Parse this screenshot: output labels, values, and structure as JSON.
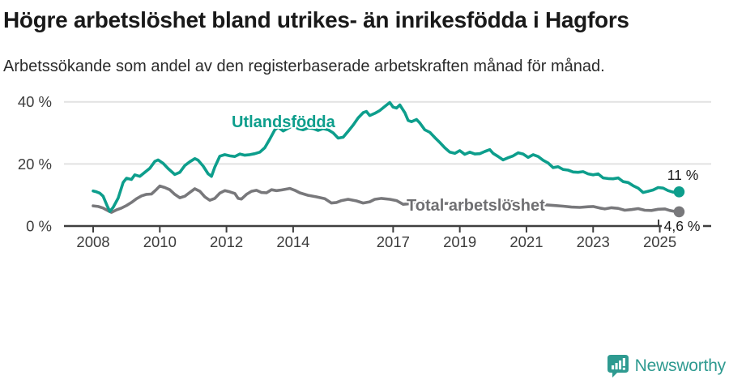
{
  "chart_data": {
    "type": "line",
    "title": "Högre arbetslöshet bland utrikes- än inrikesfödda i Hagfors",
    "subtitle": "Arbetssökande som andel av den registerbaserade arbetskraften månad för månad.",
    "xlabel": "",
    "ylabel": "",
    "y_unit": "%",
    "x_unit": "year",
    "ylim": [
      0,
      44
    ],
    "xlim": [
      2008,
      2026.5
    ],
    "grid": "horizontal",
    "legend": "inline-labels",
    "yticks": [
      {
        "value": 0,
        "label": "0 %"
      },
      {
        "value": 20,
        "label": "20 %"
      },
      {
        "value": 40,
        "label": "40 %"
      }
    ],
    "xticks": [
      {
        "value": 2008,
        "label": "2008"
      },
      {
        "value": 2010,
        "label": "2010"
      },
      {
        "value": 2012,
        "label": "2012"
      },
      {
        "value": 2014,
        "label": "2014"
      },
      {
        "value": 2017,
        "label": "2017"
      },
      {
        "value": 2019,
        "label": "2019"
      },
      {
        "value": 2021,
        "label": "2021"
      },
      {
        "value": 2023,
        "label": "2023"
      },
      {
        "value": 2025,
        "label": "2025"
      }
    ],
    "series": [
      {
        "name": "Utlandsfödda",
        "color": "#0d9e8c",
        "end_label": "11 %",
        "end_value": 11.0,
        "points": [
          [
            2008.0,
            11.3
          ],
          [
            2008.1,
            11.0
          ],
          [
            2008.2,
            10.6
          ],
          [
            2008.3,
            9.6
          ],
          [
            2008.42,
            6.5
          ],
          [
            2008.5,
            4.7
          ],
          [
            2008.6,
            6.0
          ],
          [
            2008.75,
            9.0
          ],
          [
            2008.9,
            14.0
          ],
          [
            2009.0,
            15.4
          ],
          [
            2009.15,
            15.0
          ],
          [
            2009.25,
            16.5
          ],
          [
            2009.4,
            16.0
          ],
          [
            2009.55,
            17.3
          ],
          [
            2009.7,
            18.6
          ],
          [
            2009.85,
            20.8
          ],
          [
            2009.95,
            21.3
          ],
          [
            2010.1,
            20.2
          ],
          [
            2010.25,
            18.5
          ],
          [
            2010.45,
            16.6
          ],
          [
            2010.6,
            17.3
          ],
          [
            2010.75,
            19.5
          ],
          [
            2010.9,
            20.7
          ],
          [
            2011.05,
            21.7
          ],
          [
            2011.15,
            21.2
          ],
          [
            2011.3,
            19.3
          ],
          [
            2011.45,
            16.8
          ],
          [
            2011.55,
            16.0
          ],
          [
            2011.65,
            19.0
          ],
          [
            2011.8,
            22.5
          ],
          [
            2011.95,
            23.0
          ],
          [
            2012.1,
            22.6
          ],
          [
            2012.25,
            22.4
          ],
          [
            2012.4,
            23.2
          ],
          [
            2012.55,
            22.8
          ],
          [
            2012.7,
            23.0
          ],
          [
            2012.85,
            23.3
          ],
          [
            2013.0,
            23.8
          ],
          [
            2013.15,
            25.2
          ],
          [
            2013.3,
            28.0
          ],
          [
            2013.45,
            31.0
          ],
          [
            2013.55,
            31.8
          ],
          [
            2013.7,
            30.6
          ],
          [
            2013.85,
            31.5
          ],
          [
            2014.0,
            32.3
          ],
          [
            2014.15,
            31.4
          ],
          [
            2014.3,
            31.0
          ],
          [
            2014.45,
            31.6
          ],
          [
            2014.6,
            31.4
          ],
          [
            2014.75,
            30.8
          ],
          [
            2014.9,
            31.4
          ],
          [
            2015.05,
            31.0
          ],
          [
            2015.2,
            30.0
          ],
          [
            2015.35,
            28.3
          ],
          [
            2015.5,
            28.6
          ],
          [
            2015.65,
            30.5
          ],
          [
            2015.8,
            32.5
          ],
          [
            2015.95,
            34.8
          ],
          [
            2016.1,
            36.5
          ],
          [
            2016.2,
            36.9
          ],
          [
            2016.3,
            35.6
          ],
          [
            2016.45,
            36.3
          ],
          [
            2016.6,
            37.2
          ],
          [
            2016.75,
            38.5
          ],
          [
            2016.9,
            39.8
          ],
          [
            2017.0,
            38.3
          ],
          [
            2017.1,
            38.0
          ],
          [
            2017.2,
            39.0
          ],
          [
            2017.35,
            36.5
          ],
          [
            2017.45,
            34.0
          ],
          [
            2017.55,
            33.6
          ],
          [
            2017.7,
            34.3
          ],
          [
            2017.8,
            33.2
          ],
          [
            2017.95,
            31.0
          ],
          [
            2018.1,
            30.2
          ],
          [
            2018.25,
            28.5
          ],
          [
            2018.4,
            26.9
          ],
          [
            2018.55,
            25.2
          ],
          [
            2018.7,
            23.8
          ],
          [
            2018.85,
            23.4
          ],
          [
            2019.0,
            24.3
          ],
          [
            2019.15,
            23.1
          ],
          [
            2019.3,
            23.8
          ],
          [
            2019.45,
            23.2
          ],
          [
            2019.6,
            23.3
          ],
          [
            2019.75,
            24.0
          ],
          [
            2019.9,
            24.6
          ],
          [
            2020.0,
            23.4
          ],
          [
            2020.15,
            22.4
          ],
          [
            2020.3,
            21.3
          ],
          [
            2020.45,
            22.0
          ],
          [
            2020.6,
            22.6
          ],
          [
            2020.75,
            23.6
          ],
          [
            2020.9,
            23.2
          ],
          [
            2021.05,
            22.1
          ],
          [
            2021.2,
            23.0
          ],
          [
            2021.35,
            22.4
          ],
          [
            2021.5,
            21.2
          ],
          [
            2021.65,
            20.3
          ],
          [
            2021.8,
            18.8
          ],
          [
            2021.95,
            19.1
          ],
          [
            2022.1,
            18.2
          ],
          [
            2022.25,
            18.0
          ],
          [
            2022.4,
            17.4
          ],
          [
            2022.55,
            17.3
          ],
          [
            2022.7,
            17.5
          ],
          [
            2022.85,
            16.8
          ],
          [
            2023.0,
            16.5
          ],
          [
            2023.15,
            16.8
          ],
          [
            2023.3,
            15.5
          ],
          [
            2023.45,
            15.3
          ],
          [
            2023.6,
            15.2
          ],
          [
            2023.75,
            15.5
          ],
          [
            2023.9,
            14.3
          ],
          [
            2024.05,
            14.0
          ],
          [
            2024.2,
            13.0
          ],
          [
            2024.35,
            12.2
          ],
          [
            2024.5,
            10.8
          ],
          [
            2024.65,
            11.2
          ],
          [
            2024.8,
            11.6
          ],
          [
            2024.95,
            12.4
          ],
          [
            2025.1,
            12.2
          ],
          [
            2025.25,
            11.4
          ],
          [
            2025.4,
            10.9
          ],
          [
            2025.58,
            11.0
          ]
        ]
      },
      {
        "name": "Total arbetslöshet",
        "color": "#78787b",
        "end_label": "4,6 %",
        "end_value": 4.6,
        "points": [
          [
            2008.0,
            6.5
          ],
          [
            2008.15,
            6.3
          ],
          [
            2008.3,
            5.8
          ],
          [
            2008.45,
            4.9
          ],
          [
            2008.55,
            4.4
          ],
          [
            2008.7,
            5.2
          ],
          [
            2008.85,
            5.8
          ],
          [
            2009.0,
            6.6
          ],
          [
            2009.15,
            7.6
          ],
          [
            2009.3,
            8.8
          ],
          [
            2009.45,
            9.7
          ],
          [
            2009.6,
            10.2
          ],
          [
            2009.75,
            10.3
          ],
          [
            2009.9,
            11.8
          ],
          [
            2010.0,
            12.9
          ],
          [
            2010.15,
            12.4
          ],
          [
            2010.3,
            11.7
          ],
          [
            2010.45,
            10.2
          ],
          [
            2010.6,
            9.1
          ],
          [
            2010.75,
            9.6
          ],
          [
            2010.9,
            10.8
          ],
          [
            2011.05,
            12.0
          ],
          [
            2011.2,
            11.2
          ],
          [
            2011.35,
            9.4
          ],
          [
            2011.5,
            8.3
          ],
          [
            2011.65,
            8.9
          ],
          [
            2011.8,
            10.6
          ],
          [
            2011.95,
            11.4
          ],
          [
            2012.1,
            11.0
          ],
          [
            2012.25,
            10.5
          ],
          [
            2012.35,
            8.9
          ],
          [
            2012.45,
            8.7
          ],
          [
            2012.6,
            10.2
          ],
          [
            2012.75,
            11.2
          ],
          [
            2012.9,
            11.5
          ],
          [
            2013.05,
            10.8
          ],
          [
            2013.2,
            10.7
          ],
          [
            2013.35,
            11.7
          ],
          [
            2013.5,
            11.4
          ],
          [
            2013.65,
            11.6
          ],
          [
            2013.9,
            12.1
          ],
          [
            2014.05,
            11.5
          ],
          [
            2014.2,
            10.7
          ],
          [
            2014.45,
            9.9
          ],
          [
            2014.7,
            9.4
          ],
          [
            2014.95,
            8.8
          ],
          [
            2015.15,
            7.4
          ],
          [
            2015.3,
            7.6
          ],
          [
            2015.45,
            8.2
          ],
          [
            2015.65,
            8.6
          ],
          [
            2015.9,
            8.1
          ],
          [
            2016.1,
            7.4
          ],
          [
            2016.3,
            7.8
          ],
          [
            2016.45,
            8.6
          ],
          [
            2016.65,
            8.9
          ],
          [
            2016.9,
            8.6
          ],
          [
            2017.1,
            8.2
          ],
          [
            2017.3,
            7.0
          ],
          [
            2017.5,
            7.2
          ],
          [
            2017.7,
            7.6
          ],
          [
            2017.9,
            7.8
          ],
          [
            2018.1,
            7.4
          ],
          [
            2018.35,
            7.0
          ],
          [
            2018.6,
            7.3
          ],
          [
            2018.85,
            7.1
          ],
          [
            2019.1,
            6.9
          ],
          [
            2019.35,
            7.2
          ],
          [
            2019.6,
            7.4
          ],
          [
            2019.85,
            7.2
          ],
          [
            2020.1,
            7.5
          ],
          [
            2020.35,
            8.0
          ],
          [
            2020.6,
            7.8
          ],
          [
            2020.85,
            7.5
          ],
          [
            2021.1,
            7.3
          ],
          [
            2021.35,
            7.0
          ],
          [
            2021.6,
            6.8
          ],
          [
            2021.85,
            6.6
          ],
          [
            2022.1,
            6.4
          ],
          [
            2022.35,
            6.1
          ],
          [
            2022.6,
            6.0
          ],
          [
            2022.85,
            6.2
          ],
          [
            2023.0,
            6.3
          ],
          [
            2023.2,
            5.8
          ],
          [
            2023.35,
            5.5
          ],
          [
            2023.55,
            5.9
          ],
          [
            2023.75,
            5.7
          ],
          [
            2023.95,
            5.1
          ],
          [
            2024.15,
            5.3
          ],
          [
            2024.35,
            5.6
          ],
          [
            2024.55,
            5.1
          ],
          [
            2024.75,
            5.0
          ],
          [
            2024.95,
            5.4
          ],
          [
            2025.15,
            5.5
          ],
          [
            2025.3,
            5.0
          ],
          [
            2025.45,
            4.7
          ],
          [
            2025.58,
            4.6
          ]
        ]
      }
    ]
  },
  "footer": {
    "brand": "Newsworthy",
    "brand_color": "#2e9a90"
  }
}
